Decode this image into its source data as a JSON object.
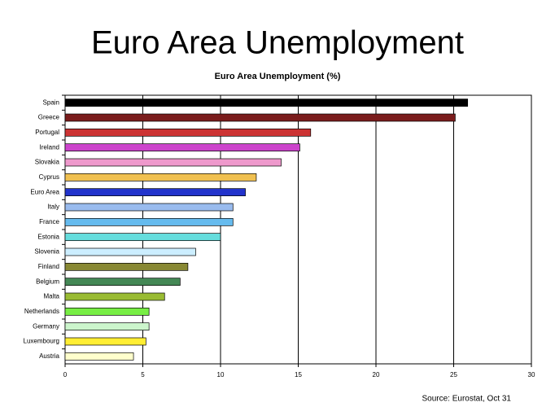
{
  "chart_data": {
    "type": "barh",
    "title": "Euro Area Unemployment",
    "subtitle": "Euro Area Unemployment (%)",
    "source": "Source: Eurostat, Oct 31",
    "categories": [
      "Spain",
      "Greece",
      "Portugal",
      "Ireland",
      "Slovakia",
      "Cyprus",
      "Euro Area",
      "Italy",
      "France",
      "Estonia",
      "Slovenia",
      "Finland",
      "Belgium",
      "Malta",
      "Netherlands",
      "Germany",
      "Luxembourg",
      "Austria"
    ],
    "values": [
      25.9,
      25.1,
      15.8,
      15.1,
      13.9,
      12.3,
      11.6,
      10.8,
      10.8,
      10.0,
      8.4,
      7.9,
      7.4,
      6.4,
      5.4,
      5.4,
      5.2,
      4.4
    ],
    "colors": [
      "#000000",
      "#7a1c1c",
      "#cc3333",
      "#cc44cc",
      "#ee99cc",
      "#f0c050",
      "#2233cc",
      "#99bbee",
      "#66bbee",
      "#66dddd",
      "#cceeff",
      "#888833",
      "#448855",
      "#99bb33",
      "#77ee44",
      "#ccf5cc",
      "#ffee33",
      "#ffffcc"
    ],
    "xlim": [
      0,
      30
    ],
    "xticks": [
      0,
      5,
      10,
      15,
      20,
      25,
      30
    ],
    "grid": true
  }
}
